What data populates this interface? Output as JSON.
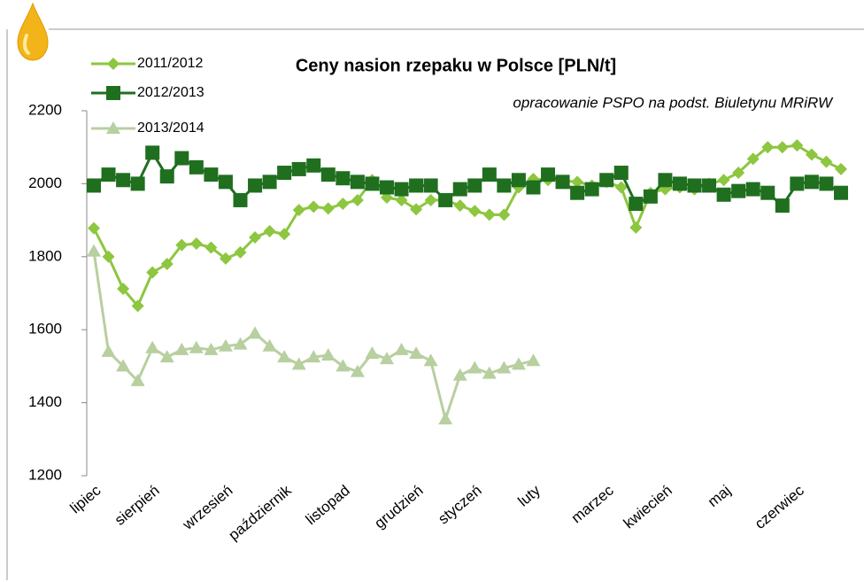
{
  "chart_data": {
    "type": "line",
    "title": "Ceny nasion rzepaku w Polsce [PLN/t]",
    "subtitle": "opracowanie PSPO na podst. Biuletynu MRiRW",
    "categories": [
      "lipiec",
      null,
      null,
      null,
      "sierpień",
      null,
      null,
      null,
      null,
      "wrzesień",
      null,
      null,
      null,
      "październik",
      null,
      null,
      null,
      "listopad",
      null,
      null,
      null,
      null,
      "grudzień",
      null,
      null,
      null,
      "styczeń",
      null,
      null,
      null,
      "luty",
      null,
      null,
      null,
      null,
      "marzec",
      null,
      null,
      null,
      "kwiecień",
      null,
      null,
      null,
      "maj",
      null,
      null,
      null,
      null,
      "czerwiec",
      null,
      null,
      null
    ],
    "series": [
      {
        "name": "2011/2012",
        "color": "#8dc63f",
        "marker": "diamond",
        "values": [
          1878,
          1800,
          1712,
          1665,
          1757,
          1780,
          1832,
          1836,
          1825,
          1795,
          1812,
          1853,
          1870,
          1862,
          1928,
          1937,
          1932,
          1945,
          1955,
          2010,
          1962,
          1955,
          1930,
          1955,
          1955,
          1940,
          1925,
          1915,
          1915,
          1990,
          2013,
          2010,
          2008,
          2005,
          1995,
          2005,
          1990,
          1880,
          1975,
          1985,
          1990,
          1985,
          2000,
          2010,
          2030,
          2068,
          2100,
          2100,
          2105,
          2080,
          2060,
          2040
        ]
      },
      {
        "name": "2012/2013",
        "color": "#1f6f1f",
        "marker": "square",
        "values": [
          1995,
          2025,
          2010,
          2000,
          2085,
          2020,
          2070,
          2045,
          2025,
          2005,
          1955,
          1995,
          2005,
          2030,
          2040,
          2050,
          2025,
          2015,
          2005,
          2000,
          1990,
          1985,
          1995,
          1995,
          1955,
          1985,
          1995,
          2025,
          1995,
          2010,
          1990,
          2025,
          2005,
          1975,
          1985,
          2010,
          2030,
          1945,
          1965,
          2010,
          2000,
          1995,
          1995,
          1970,
          1980,
          1985,
          1975,
          1940,
          2000,
          2005,
          2000,
          1975
        ]
      },
      {
        "name": "2013/2014",
        "color": "#b8cfa0",
        "marker": "triangle",
        "values": [
          1815,
          1540,
          1500,
          1460,
          1550,
          1525,
          1545,
          1550,
          1545,
          1555,
          1560,
          1590,
          1555,
          1525,
          1505,
          1525,
          1530,
          1500,
          1485,
          1535,
          1520,
          1545,
          1535,
          1515,
          1355,
          1475,
          1495,
          1480,
          1495,
          1505,
          1515,
          null,
          null,
          null,
          null,
          null,
          null,
          null,
          null,
          null,
          null,
          null,
          null,
          null,
          null,
          null,
          null,
          null,
          null,
          null,
          null,
          null
        ]
      }
    ],
    "ylim": [
      1200,
      2200
    ],
    "yticks": [
      1200,
      1400,
      1600,
      1800,
      2000,
      2200
    ],
    "grid": false,
    "legend": "top-left"
  }
}
